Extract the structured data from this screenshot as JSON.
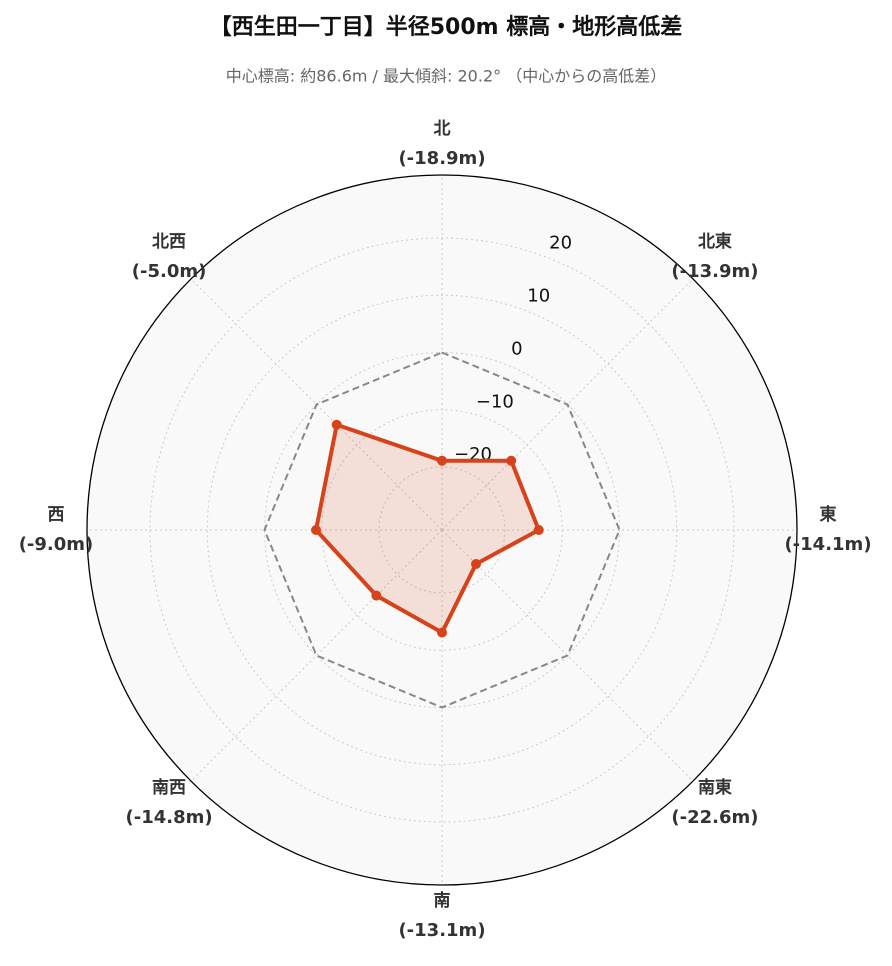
{
  "chart_data": {
    "type": "radar",
    "title": "【西生田一丁目】半径500m 標高・地形高低差",
    "subtitle": "中心標高: 約86.6m / 最大傾斜: 20.2° （中心からの高低差）",
    "categories": [
      "北",
      "北東",
      "東",
      "南東",
      "南",
      "南西",
      "西",
      "北西"
    ],
    "values": [
      -18.9,
      -13.9,
      -14.1,
      -22.6,
      -13.1,
      -14.8,
      -9.0,
      -5.0
    ],
    "value_labels": [
      "(-18.9m)",
      "(-13.9m)",
      "(-14.1m)",
      "(-22.6m)",
      "(-13.1m)",
      "(-14.8m)",
      "(-9.0m)",
      "(-5.0m)"
    ],
    "color": "#d6431b",
    "ylim": [
      -31,
      31
    ],
    "yticks": [
      {
        "value": -20,
        "label": "−20"
      },
      {
        "value": -10,
        "label": "−10"
      },
      0,
      10,
      20
    ],
    "reference_value": 0,
    "grid": true
  }
}
